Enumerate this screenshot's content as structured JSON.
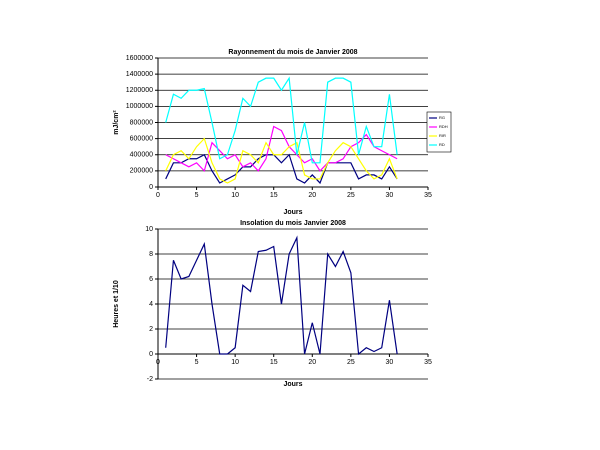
{
  "chart_data": [
    {
      "type": "line",
      "title": "Rayonnement du mois de Janvier 2008",
      "xlabel": "Jours",
      "ylabel": "mJ/cm²",
      "x": [
        1,
        2,
        3,
        4,
        5,
        6,
        7,
        8,
        9,
        10,
        11,
        12,
        13,
        14,
        15,
        16,
        17,
        18,
        19,
        20,
        21,
        22,
        23,
        24,
        25,
        26,
        27,
        28,
        29,
        30,
        31
      ],
      "series": [
        {
          "name": "RG",
          "color": "#000080",
          "values": [
            100000,
            300000,
            300000,
            350000,
            350000,
            400000,
            200000,
            50000,
            100000,
            150000,
            250000,
            250000,
            350000,
            400000,
            400000,
            300000,
            400000,
            100000,
            50000,
            150000,
            50000,
            300000,
            300000,
            300000,
            300000,
            100000,
            150000,
            150000,
            100000,
            250000,
            100000
          ]
        },
        {
          "name": "RDH",
          "color": "#ff00ff",
          "values": [
            400000,
            350000,
            300000,
            250000,
            300000,
            200000,
            550000,
            450000,
            350000,
            400000,
            250000,
            300000,
            200000,
            350000,
            750000,
            700000,
            500000,
            400000,
            300000,
            350000,
            200000,
            300000,
            300000,
            350000,
            500000,
            550000,
            650000,
            500000,
            450000,
            400000,
            350000
          ]
        },
        {
          "name": "RIR",
          "color": "#ffff00",
          "values": [
            200000,
            400000,
            450000,
            350000,
            500000,
            600000,
            300000,
            100000,
            50000,
            100000,
            450000,
            400000,
            300000,
            550000,
            400000,
            400000,
            500000,
            550000,
            150000,
            100000,
            100000,
            300000,
            450000,
            550000,
            500000,
            350000,
            200000,
            100000,
            150000,
            350000,
            100000
          ]
        },
        {
          "name": "RD",
          "color": "#00ffff",
          "values": [
            800000,
            1150000,
            1100000,
            1200000,
            1200000,
            1220000,
            800000,
            350000,
            400000,
            700000,
            1100000,
            1000000,
            1300000,
            1350000,
            1350000,
            1200000,
            1350000,
            400000,
            800000,
            300000,
            300000,
            1300000,
            1350000,
            1350000,
            1300000,
            400000,
            750000,
            500000,
            500000,
            1150000,
            400000
          ]
        }
      ],
      "xlim": [
        0,
        35
      ],
      "xticks": [
        0,
        5,
        10,
        15,
        20,
        25,
        30,
        35
      ],
      "ylim": [
        0,
        1600000
      ],
      "yticks": [
        0,
        200000,
        400000,
        600000,
        800000,
        1000000,
        1200000,
        1400000,
        1600000
      ],
      "grid": true,
      "legend": "right"
    },
    {
      "type": "line",
      "title": "Insolation du mois Janvier 2008",
      "xlabel": "Jours",
      "ylabel": "Heures et 1/10",
      "x": [
        1,
        2,
        3,
        4,
        5,
        6,
        7,
        8,
        9,
        10,
        11,
        12,
        13,
        14,
        15,
        16,
        17,
        18,
        19,
        20,
        21,
        22,
        23,
        24,
        25,
        26,
        27,
        28,
        29,
        30,
        31
      ],
      "series": [
        {
          "color": "#000080",
          "values": [
            0.5,
            7.5,
            6,
            6.2,
            7.5,
            8.8,
            4,
            0,
            0,
            0.5,
            5.5,
            5,
            8.2,
            8.3,
            8.6,
            4,
            8,
            9.3,
            0,
            2.5,
            0,
            8,
            7,
            8.2,
            6.5,
            0,
            0.5,
            0.2,
            0.5,
            4.3,
            0
          ]
        }
      ],
      "xlim": [
        0,
        35
      ],
      "xticks": [
        0,
        5,
        10,
        15,
        20,
        25,
        30,
        35
      ],
      "ylim": [
        -2,
        10
      ],
      "yticks": [
        -2,
        0,
        2,
        4,
        6,
        8,
        10
      ],
      "grid": true
    }
  ]
}
